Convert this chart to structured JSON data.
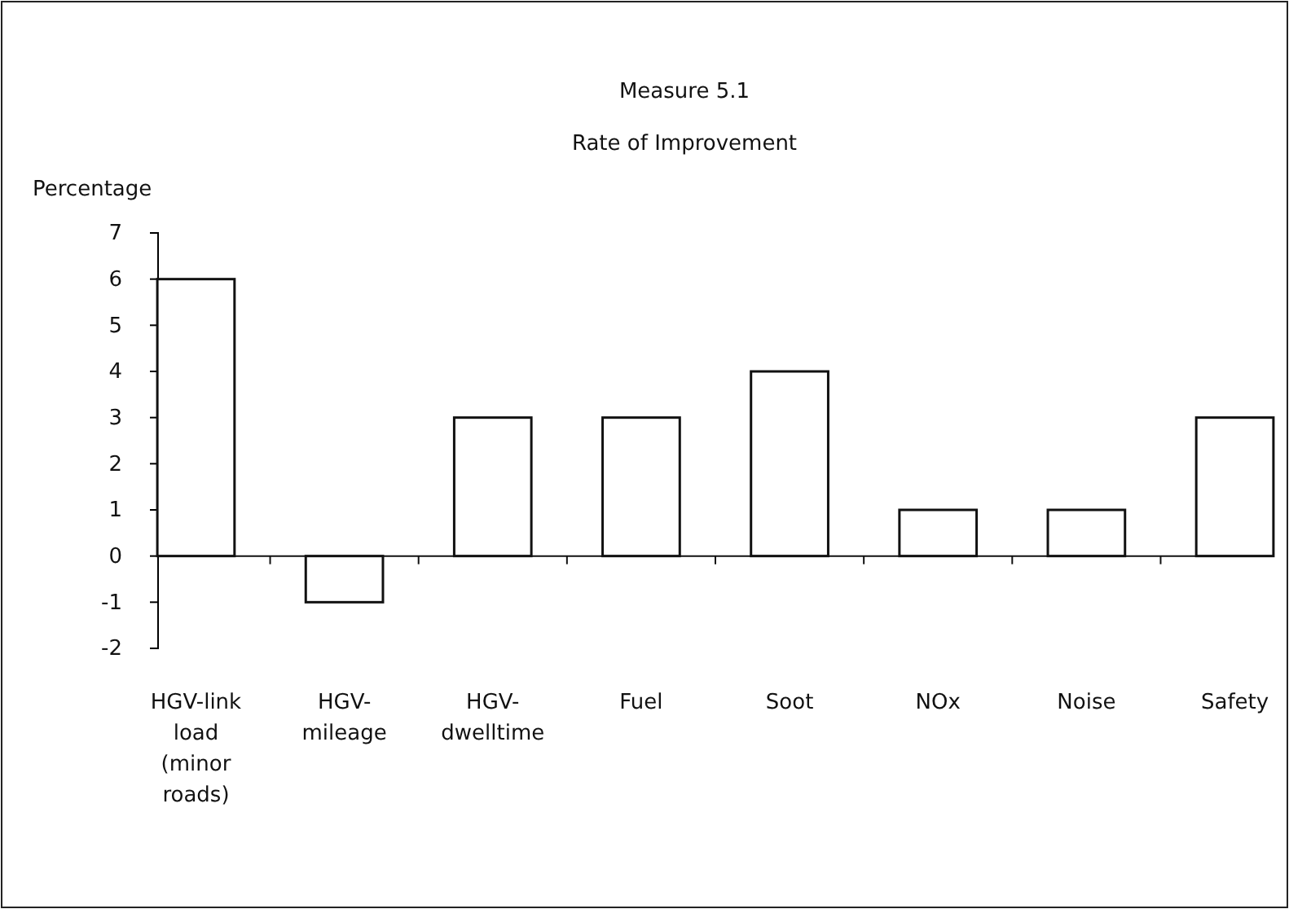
{
  "chart_data": {
    "type": "bar",
    "title": "Measure 5.1",
    "subtitle": "Rate of Improvement",
    "ylabel": "Percentage",
    "categories": [
      "HGV-link load (minor roads)",
      "HGV-mileage",
      "HGV-dwelltime",
      "Fuel",
      "Soot",
      "NOx",
      "Noise",
      "Safety"
    ],
    "values": [
      6,
      -1,
      3,
      3,
      4,
      1,
      1,
      3
    ],
    "color": "#ffffff",
    "ylim": [
      -2,
      7
    ],
    "yticks": [
      -2,
      -1,
      0,
      1,
      2,
      3,
      4,
      5,
      6,
      7
    ]
  }
}
